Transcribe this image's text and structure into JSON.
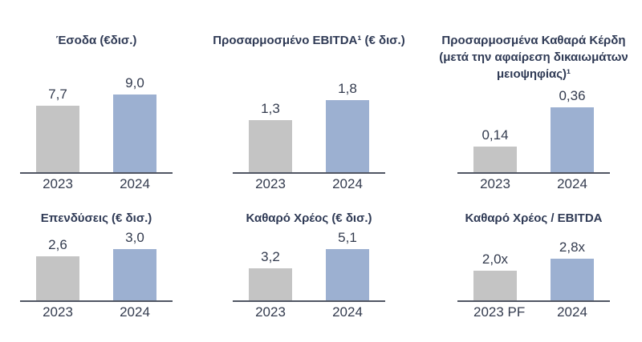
{
  "colors": {
    "text": "#2f3a55",
    "axis": "#505663",
    "series": [
      "#c4c4c4",
      "#9cb0d1"
    ]
  },
  "chart_data": [
    {
      "type": "bar",
      "title": "Έσοδα (€δισ.)",
      "categories": [
        "2023",
        "2024"
      ],
      "values": [
        7.7,
        9.0
      ],
      "value_labels": [
        "7,7",
        "9,0"
      ],
      "legend": "none",
      "grid": "off"
    },
    {
      "type": "bar",
      "title": "Προσαρμοσμένο EBITDA¹ (€ δισ.)",
      "categories": [
        "2023",
        "2024"
      ],
      "values": [
        1.3,
        1.8
      ],
      "value_labels": [
        "1,3",
        "1,8"
      ],
      "legend": "none",
      "grid": "off"
    },
    {
      "type": "bar",
      "title": "Προσαρμοσμένα Καθαρά Κέρδη (μετά την αφαίρεση δικαιωμάτων μειοψηφίας)¹",
      "categories": [
        "2023",
        "2024"
      ],
      "values": [
        0.14,
        0.36
      ],
      "value_labels": [
        "0,14",
        "0,36"
      ],
      "legend": "none",
      "grid": "off"
    },
    {
      "type": "bar",
      "title": "Επενδύσεις (€ δισ.)",
      "categories": [
        "2023",
        "2024"
      ],
      "values": [
        2.6,
        3.0
      ],
      "value_labels": [
        "2,6",
        "3,0"
      ],
      "legend": "none",
      "grid": "off"
    },
    {
      "type": "bar",
      "title": "Καθαρό Χρέος (€ δισ.)",
      "categories": [
        "2023",
        "2024"
      ],
      "values": [
        3.2,
        5.1
      ],
      "value_labels": [
        "3,2",
        "5,1"
      ],
      "legend": "none",
      "grid": "off"
    },
    {
      "type": "bar",
      "title": "Καθαρό Χρέος / EBITDA",
      "categories": [
        "2023 PF",
        "2024"
      ],
      "values": [
        2.0,
        2.8
      ],
      "value_labels": [
        "2,0x",
        "2,8x"
      ],
      "legend": "none",
      "grid": "off"
    }
  ]
}
